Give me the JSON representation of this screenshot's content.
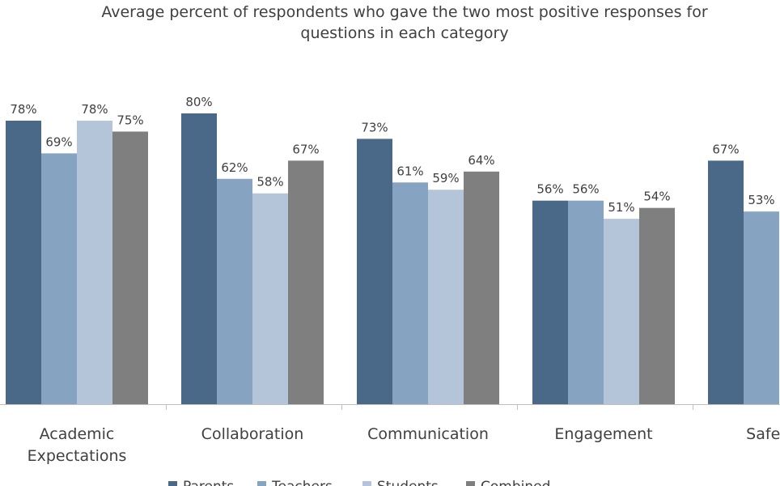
{
  "chart_data": {
    "type": "bar",
    "title_lines": [
      "Average percent of respondents who gave the two most positive responses for",
      "questions in each category"
    ],
    "categories": [
      [
        "Academic",
        "Expectations"
      ],
      [
        "Collaboration"
      ],
      [
        "Communication"
      ],
      [
        "Engagement"
      ],
      [
        "Safety &"
      ]
    ],
    "series": [
      {
        "name": "Parents",
        "color": "#4a6988",
        "values": [
          78,
          80,
          73,
          56,
          67
        ]
      },
      {
        "name": "Teachers",
        "color": "#87a3c2",
        "values": [
          69,
          62,
          61,
          56,
          53
        ]
      },
      {
        "name": "Students",
        "color": "#b4c5d9",
        "values": [
          78,
          58,
          59,
          51,
          null
        ]
      },
      {
        "name": "Combined",
        "color": "#7f7f7f",
        "values": [
          75,
          67,
          64,
          54,
          null
        ]
      }
    ],
    "value_suffix": "%",
    "ylim": [
      0,
      80
    ],
    "grid": false,
    "legend_position": "bottom"
  }
}
